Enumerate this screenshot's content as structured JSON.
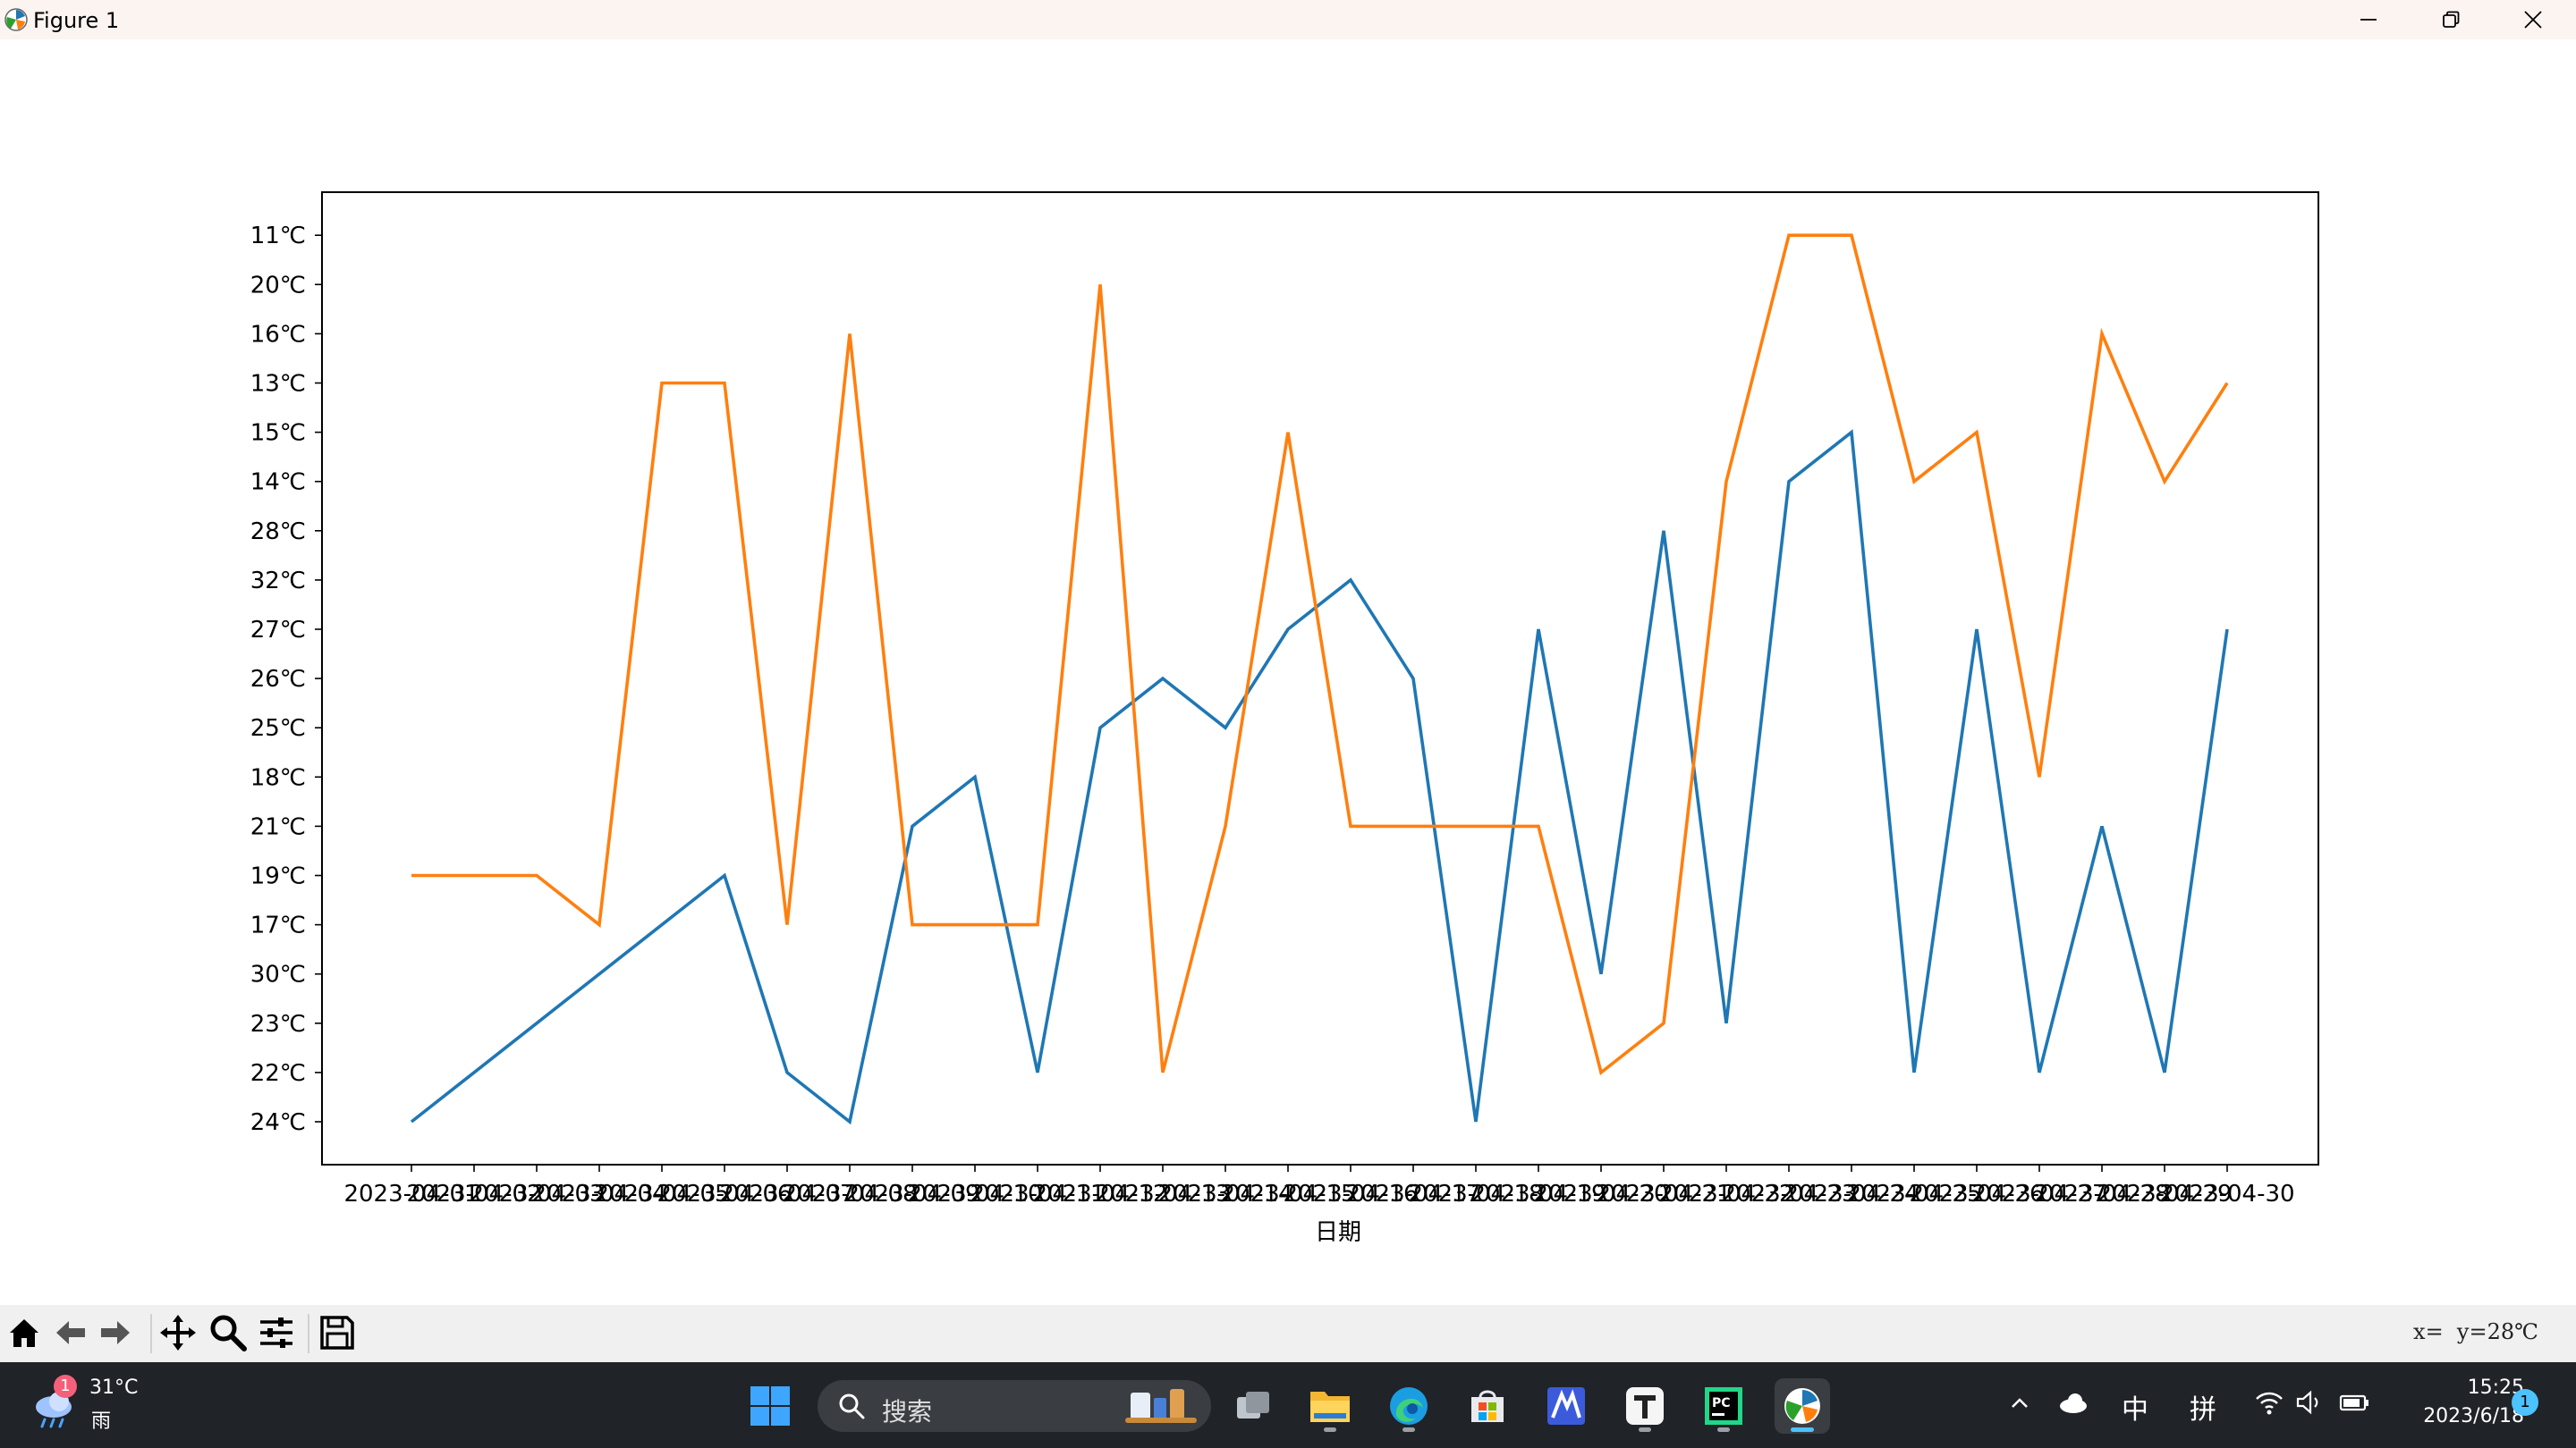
{
  "window": {
    "title": "Figure 1",
    "icons": [
      "matplotlib-icon",
      "minimize-icon",
      "restore-icon",
      "close-icon"
    ]
  },
  "chart_data": {
    "type": "line",
    "xlabel": "日期",
    "x": [
      "2023-04-01",
      "2023-04-02",
      "2023-04-03",
      "2023-04-04",
      "2023-04-05",
      "2023-04-06",
      "2023-04-07",
      "2023-04-08",
      "2023-04-09",
      "2023-04-10",
      "2023-04-11",
      "2023-04-12",
      "2023-04-13",
      "2023-04-14",
      "2023-04-15",
      "2023-04-16",
      "2023-04-17",
      "2023-04-18",
      "2023-04-19",
      "2023-04-20",
      "2023-04-21",
      "2023-04-22",
      "2023-04-23",
      "2023-04-24",
      "2023-04-25",
      "2023-04-26",
      "2023-04-27",
      "2023-04-28",
      "2023-04-29",
      "2023-04-30"
    ],
    "y_categories": [
      "24℃",
      "22℃",
      "23℃",
      "30℃",
      "17℃",
      "19℃",
      "21℃",
      "18℃",
      "25℃",
      "26℃",
      "27℃",
      "32℃",
      "28℃",
      "14℃",
      "15℃",
      "13℃",
      "16℃",
      "20℃",
      "11℃"
    ],
    "series": [
      {
        "color": "#1f77b4",
        "values": [
          "24℃",
          "22℃",
          "23℃",
          "30℃",
          "17℃",
          "19℃",
          "22℃",
          "24℃",
          "21℃",
          "18℃",
          "22℃",
          "25℃",
          "26℃",
          "25℃",
          "27℃",
          "32℃",
          "26℃",
          "24℃",
          "27℃",
          "30℃",
          "28℃",
          "23℃",
          "14℃",
          "15℃",
          "22℃",
          "27℃",
          "22℃",
          "21℃",
          "22℃",
          "27℃"
        ]
      },
      {
        "color": "#ff7f0e",
        "values": [
          "19℃",
          "19℃",
          "19℃",
          "17℃",
          "13℃",
          "13℃",
          "17℃",
          "16℃",
          "17℃",
          "17℃",
          "17℃",
          "20℃",
          "22℃",
          "21℃",
          "15℃",
          "21℃",
          "21℃",
          "21℃",
          "21℃",
          "22℃",
          "23℃",
          "14℃",
          "11℃",
          "11℃",
          "14℃",
          "15℃",
          "18℃",
          "16℃",
          "14℃",
          "13℃"
        ]
      }
    ],
    "grid": false,
    "legend": false
  },
  "toolbar": {
    "coords_text": "x=  y=28℃",
    "icons": [
      "home-icon",
      "back-icon",
      "forward-icon",
      "pan-icon",
      "zoom-icon",
      "configure-icon",
      "save-icon"
    ]
  },
  "taskbar": {
    "weather_badge": "1",
    "weather_temp": "31°C",
    "weather_desc": "雨",
    "search_label": "搜索",
    "ime_mode": "中",
    "ime_name": "拼",
    "time": "15:25",
    "date": "2023/6/18",
    "notification_count": "1"
  }
}
